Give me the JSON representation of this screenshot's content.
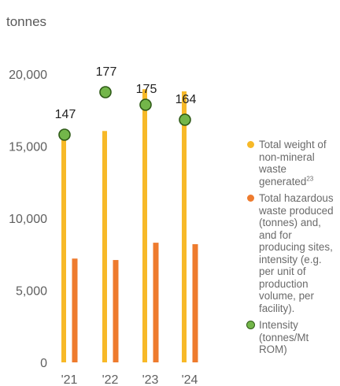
{
  "unit_label": "tonnes",
  "chart_data": {
    "type": "bar",
    "categories": [
      "'21",
      "'22",
      "'23",
      "'24"
    ],
    "ylim": [
      0,
      20000
    ],
    "y_ticks": [
      "0",
      "5,000",
      "10,000",
      "15,000",
      "20,000"
    ],
    "y_tick_values": [
      0,
      5000,
      10000,
      15000,
      20000
    ],
    "grid": false,
    "legend_position": "right",
    "series": [
      {
        "name": "Total weight of non-mineral waste generated",
        "name_superscript": "23",
        "kind": "bar",
        "color": "#f7b928",
        "values": [
          16000,
          16050,
          18950,
          18800
        ]
      },
      {
        "name": "Total hazardous waste produced (tonnes) and, and for producing sites, intensity (e.g. per unit of production volume, per facility).",
        "kind": "bar",
        "color": "#ee7b2e",
        "values": [
          7200,
          7100,
          8300,
          8200
        ]
      },
      {
        "name": "Intensity (tonnes/Mt ROM)",
        "kind": "marker",
        "color": "#73b64a",
        "edge_color": "#2e5a17",
        "values": [
          147,
          177,
          175,
          164
        ],
        "labels": [
          "147",
          "177",
          "175",
          "164"
        ]
      }
    ]
  }
}
